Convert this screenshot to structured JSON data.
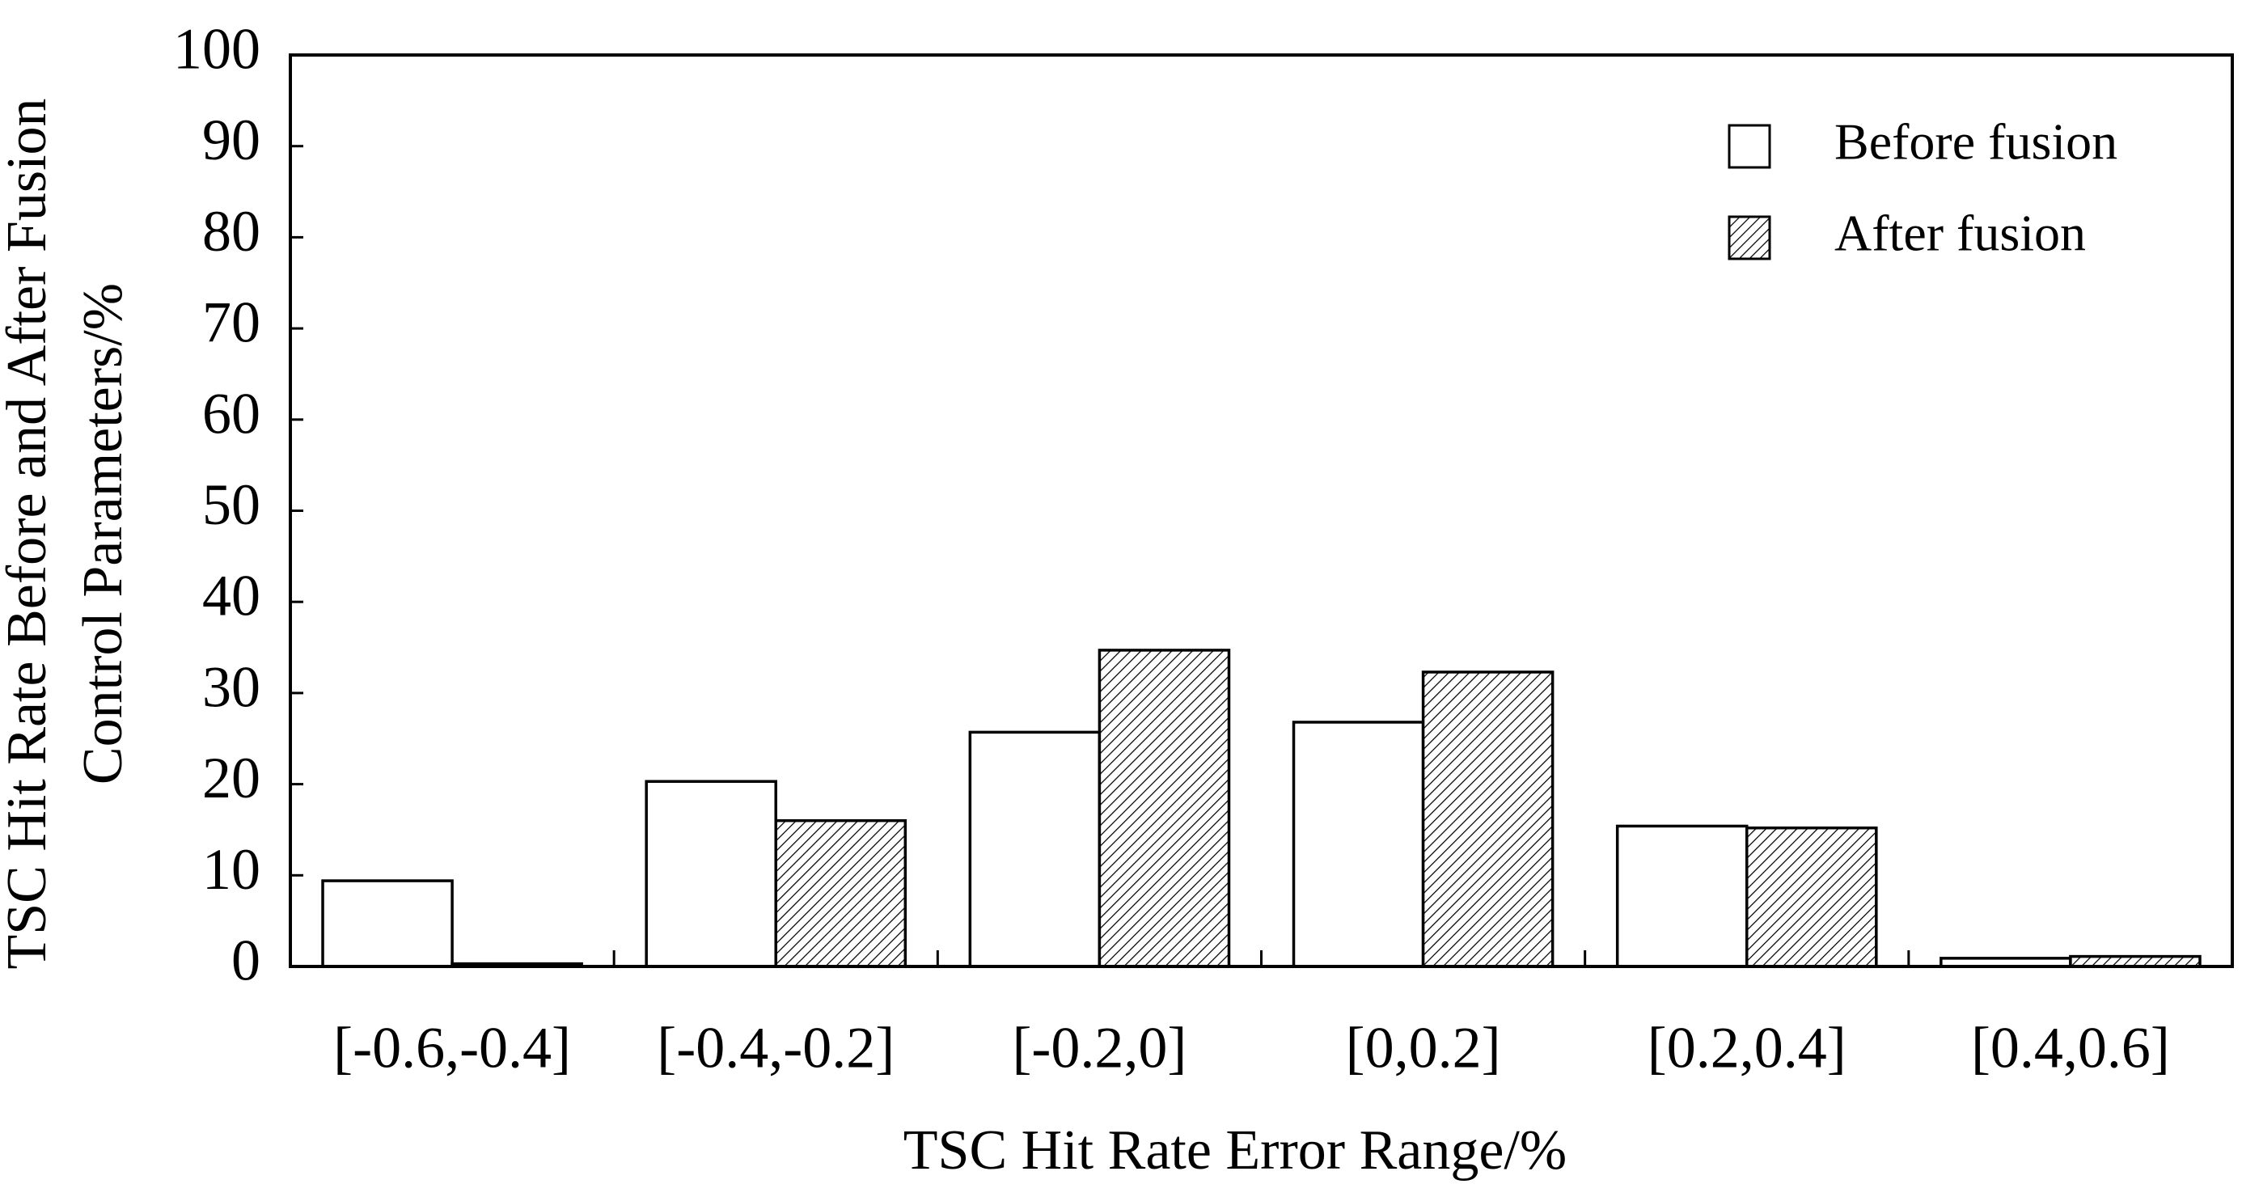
{
  "chart_data": {
    "type": "bar",
    "xlabel": "TSC Hit Rate Error Range/%",
    "ylabel": [
      "TSC Hit Rate Before and After Fusion",
      "Control Parameters/%"
    ],
    "categories": [
      "[-0.6,-0.4]",
      "[-0.4,-0.2]",
      "[-0.2,0]",
      "[0,0.2]",
      "[0.2,0.4]",
      "[0.4,0.6]"
    ],
    "series": [
      {
        "name": "Before fusion",
        "color": "#ffffff",
        "pattern": "none",
        "values": [
          9.4,
          20.3,
          25.7,
          26.8,
          15.4,
          0.9
        ]
      },
      {
        "name": "After fusion",
        "color": "#ffffff",
        "pattern": "hatch",
        "values": [
          0.3,
          16.0,
          34.7,
          32.3,
          15.2,
          1.1
        ]
      }
    ],
    "ylim": [
      0,
      100
    ],
    "yticks": [
      0,
      10,
      20,
      30,
      40,
      50,
      60,
      70,
      80,
      90,
      100
    ],
    "legend": "upper right"
  }
}
